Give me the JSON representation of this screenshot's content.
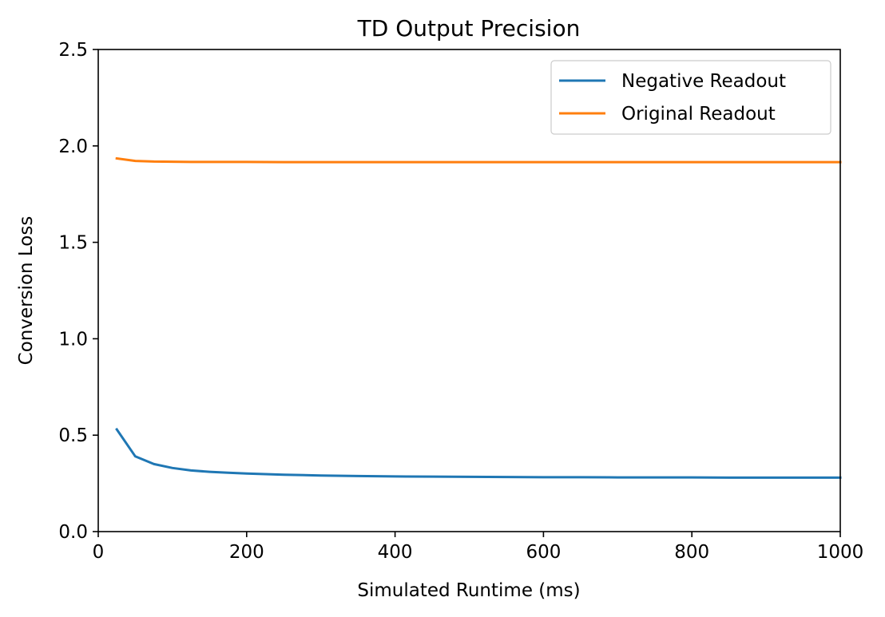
{
  "chart_data": {
    "type": "line",
    "title": "TD Output Precision",
    "xlabel": "Simulated Runtime (ms)",
    "ylabel": "Conversion Loss",
    "xlim": [
      0,
      1000
    ],
    "ylim": [
      0,
      2.5
    ],
    "xticks": [
      0,
      200,
      400,
      600,
      800,
      1000
    ],
    "xtick_labels": [
      "0",
      "200",
      "400",
      "600",
      "800",
      "1000"
    ],
    "yticks": [
      0,
      0.5,
      1,
      1.5,
      2,
      2.5
    ],
    "ytick_labels": [
      "0.0",
      "0.5",
      "1.0",
      "1.5",
      "2.0",
      "2.5"
    ],
    "grid": false,
    "legend_position": "top-right",
    "x": [
      25,
      50,
      75,
      100,
      125,
      150,
      175,
      200,
      250,
      300,
      350,
      400,
      450,
      500,
      550,
      600,
      650,
      700,
      750,
      800,
      850,
      900,
      950,
      1000
    ],
    "series": [
      {
        "name": "Negative Readout",
        "color": "#1f77b4",
        "values": [
          0.53,
          0.39,
          0.35,
          0.33,
          0.317,
          0.31,
          0.305,
          0.301,
          0.295,
          0.291,
          0.288,
          0.286,
          0.285,
          0.284,
          0.283,
          0.282,
          0.282,
          0.281,
          0.281,
          0.281,
          0.28,
          0.28,
          0.28,
          0.28
        ]
      },
      {
        "name": "Original Readout",
        "color": "#ff7f0e",
        "values": [
          1.935,
          1.922,
          1.919,
          1.918,
          1.917,
          1.917,
          1.917,
          1.917,
          1.916,
          1.916,
          1.916,
          1.916,
          1.916,
          1.916,
          1.916,
          1.916,
          1.916,
          1.916,
          1.916,
          1.916,
          1.916,
          1.916,
          1.916,
          1.916
        ]
      }
    ]
  }
}
